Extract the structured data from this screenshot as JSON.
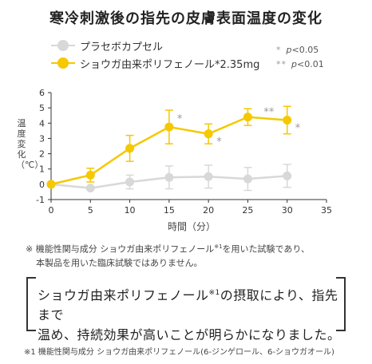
{
  "title": "寒冷刺激後の指先の皮膚表面温度の変化",
  "legend": {
    "placebo": "プラセボカプセル",
    "ginger": "ショウガ由来ポリフェノール*2.35mg"
  },
  "significance_key": [
    {
      "mark": "*",
      "p": "p",
      "text": "<0.05"
    },
    {
      "mark": "**",
      "p": "p",
      "text": "<0.01"
    }
  ],
  "colors": {
    "placebo": "#d8d8d8",
    "ginger": "#f5c800",
    "axis": "#333333",
    "mark": "#999999"
  },
  "chart_data": {
    "type": "line",
    "title": "寒冷刺激後の指先の皮膚表面温度の変化",
    "xlabel": "時間（分）",
    "ylabel": "温度変化（℃）",
    "xlim": [
      0,
      35
    ],
    "ylim": [
      -1,
      6
    ],
    "xticks": [
      "0",
      "5",
      "10",
      "15",
      "20",
      "25",
      "30",
      "35"
    ],
    "yticks": [
      "-1",
      "0",
      "1",
      "2",
      "3",
      "4",
      "5",
      "6"
    ],
    "x": [
      0,
      5,
      10,
      15,
      20,
      25,
      30
    ],
    "grid": false,
    "series": [
      {
        "name": "プラセボカプセル",
        "values": [
          0,
          -0.25,
          0.15,
          0.45,
          0.5,
          0.35,
          0.55
        ],
        "error": [
          0,
          0,
          0.45,
          0.75,
          0.75,
          0.75,
          0.75
        ]
      },
      {
        "name": "ショウガ由来ポリフェノール*2.35mg",
        "values": [
          0,
          0.6,
          2.35,
          3.75,
          3.3,
          4.4,
          4.2
        ],
        "error": [
          0,
          0.45,
          0.85,
          1.1,
          0.65,
          0.55,
          0.9
        ],
        "significance": [
          "",
          "",
          "",
          "*",
          "*",
          "**",
          "*"
        ]
      }
    ]
  },
  "note1": {
    "line1_prefix": "※ 機能性関与成分 ショウガ由来ポリフェノール",
    "line1_ref": "※1",
    "line1_suffix": "を用いた試験であり、",
    "line2": "本製品を用いた臨床試験ではありません。"
  },
  "box": {
    "prefix": "ショウガ由来ポリフェノール",
    "ref": "※1",
    "line1_suffix": "の摂取により、指先まで",
    "line2": "温め、持続効果が高いことが明らかになりました。"
  },
  "note2": "※1 機能性関与成分 ショウガ由来ポリフェノール(6-ジンゲロール、6-ショウガオール)"
}
